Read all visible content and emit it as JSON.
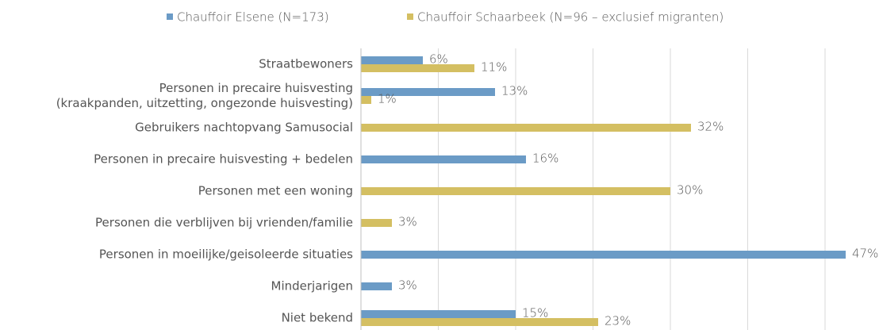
{
  "chart_data": {
    "type": "bar",
    "orientation": "horizontal",
    "categories": [
      "Straatbewoners",
      "Personen in precaire huisvesting\n(kraakpanden, uitzetting, ongezonde huisvesting)",
      "Gebruikers nachtopvang Samusocial",
      "Personen in precaire huisvesting + bedelen",
      "Personen met een woning",
      "Personen die verblijven bij vrienden/familie",
      "Personen in moeilijke/geisoleerde situaties",
      "Minderjarigen",
      "Niet bekend"
    ],
    "series": [
      {
        "name": "Chauffoir Elsene (N=173)",
        "color": "#6b9bc6",
        "values": [
          6,
          13,
          null,
          16,
          null,
          null,
          47,
          3,
          15
        ],
        "value_labels": [
          "6%",
          "13%",
          null,
          "16%",
          null,
          null,
          "47%",
          "3%",
          "15%"
        ]
      },
      {
        "name": "Chauffoir Schaarbeek (N=96 – exclusief migranten)",
        "color": "#d4bf62",
        "values": [
          11,
          1,
          32,
          null,
          30,
          3,
          null,
          null,
          23
        ],
        "value_labels": [
          "11%",
          "1%",
          "32%",
          null,
          "30%",
          "3%",
          null,
          null,
          "23%"
        ]
      }
    ],
    "xlim": [
      0,
      50
    ],
    "xticks": [
      0,
      7.5,
      15,
      22.5,
      30,
      37.5,
      45
    ],
    "grid": true,
    "legend": "top"
  }
}
